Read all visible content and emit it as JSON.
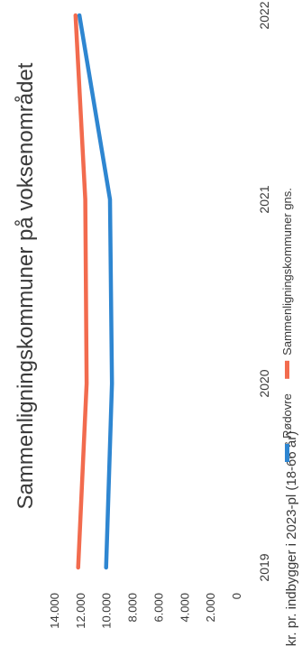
{
  "chart_data": {
    "type": "line",
    "title": "Sammenligningskommuner på voksenområdet",
    "ylabel": "kr. pr. indbygger i 2023-pl (18-66 år)",
    "xlabel": "",
    "categories": [
      "2019",
      "2020",
      "2021",
      "2022"
    ],
    "yticks": [
      "0",
      "2.000",
      "4.000",
      "6.000",
      "8.000",
      "10.000",
      "12.000",
      "14.000"
    ],
    "ylim": [
      0,
      14000
    ],
    "grid": false,
    "legend_position": "bottom",
    "series": [
      {
        "name": "Rødovre",
        "color": "#2e86d1",
        "values": [
          10000,
          9550,
          9700,
          12050
        ]
      },
      {
        "name": "Sammenligningskommuner gns.",
        "color": "#f26b4e",
        "values": [
          12150,
          11500,
          11600,
          12350
        ]
      }
    ]
  }
}
